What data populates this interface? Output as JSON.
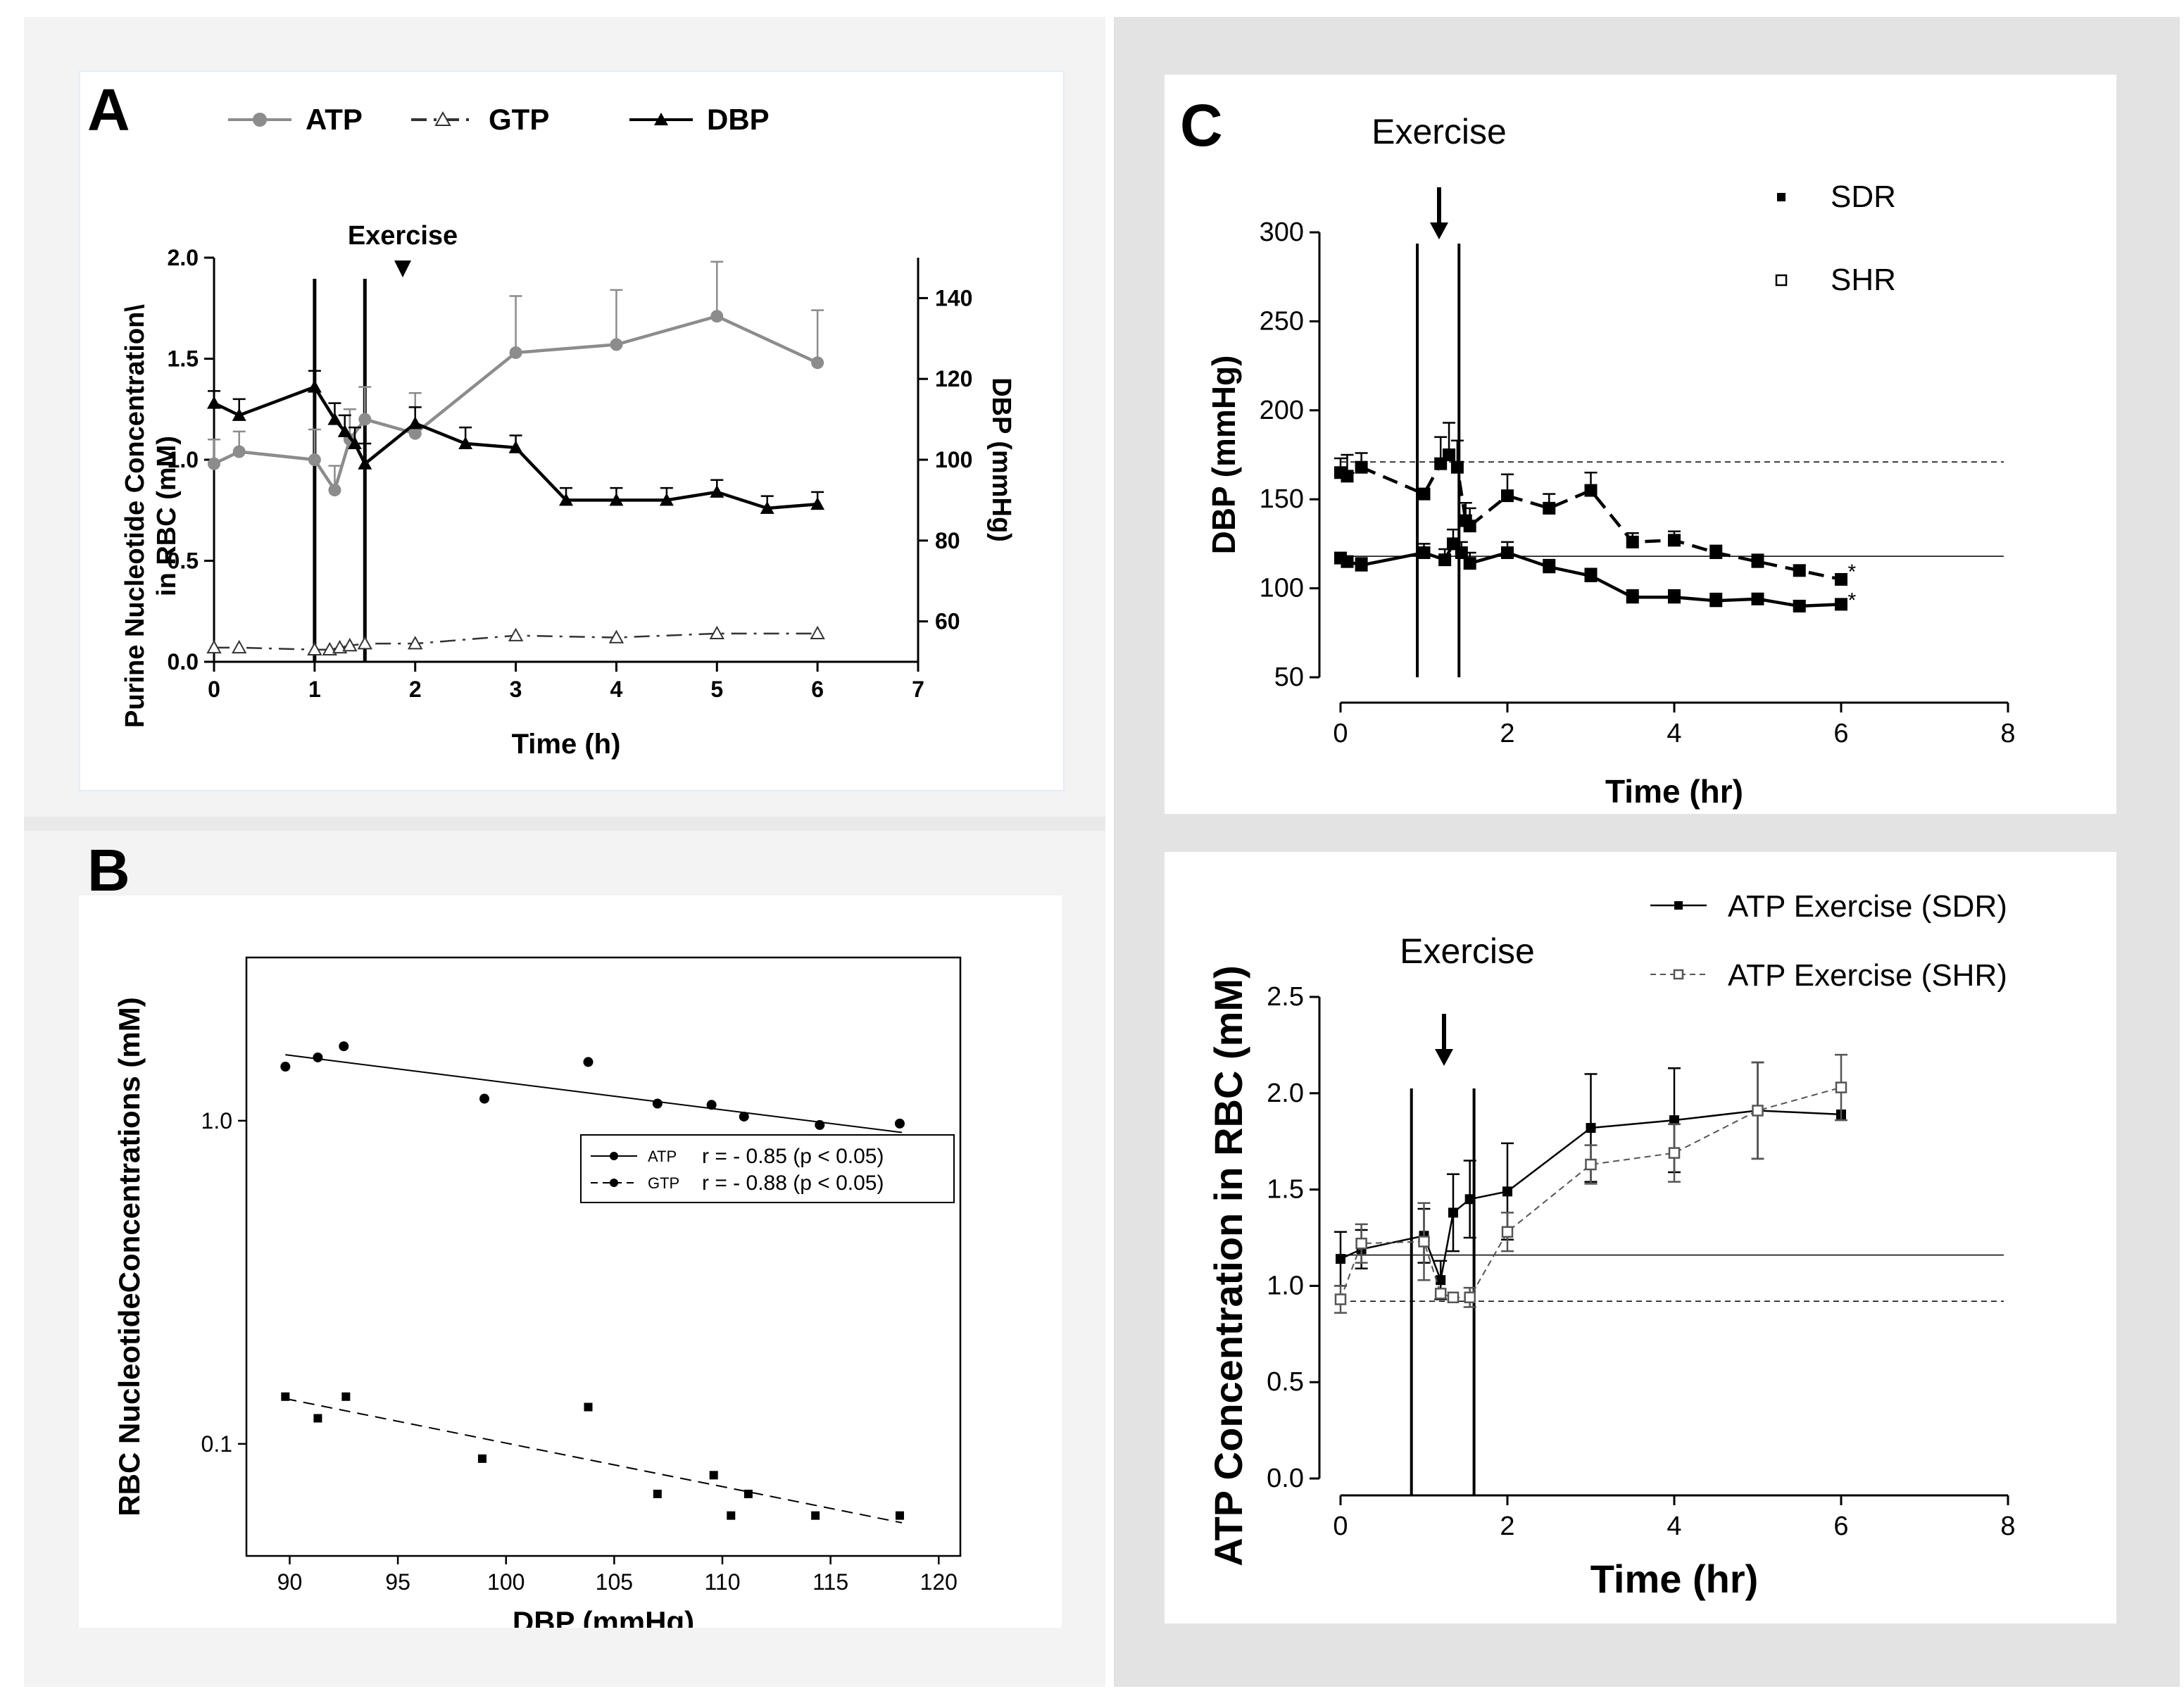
{
  "panels": {
    "A": {
      "label": "A",
      "legend": [
        "ATP",
        "GTP",
        "DBP"
      ],
      "annotation": "Exercise",
      "chart_data": {
        "type": "line",
        "xlabel": "Time (h)",
        "ylabel_line1": "Purine Nucleotide Concentration\\",
        "ylabel_line2": "in RBC (mM)",
        "y2label": "DBP (mmHg)",
        "xlim": [
          0,
          7
        ],
        "ylim": [
          0,
          2.0
        ],
        "y2lim": [
          50,
          150
        ],
        "xticks": [
          "0",
          "1",
          "2",
          "3",
          "4",
          "5",
          "6",
          "7"
        ],
        "yticks": [
          "0.0",
          "0.5",
          "1.0",
          "1.5",
          "2.0"
        ],
        "y2ticks": [
          "60",
          "80",
          "100",
          "120",
          "140"
        ],
        "exercise_lines": [
          1.0,
          1.5
        ],
        "series": [
          {
            "name": "ATP",
            "axis": "left",
            "color": "#8c8c8c",
            "style": "solid",
            "marker": "circle",
            "x": [
              0,
              0.25,
              1.0,
              1.2,
              1.35,
              1.5,
              2.0,
              3.0,
              4.0,
              5.0,
              6.0
            ],
            "y": [
              0.98,
              1.04,
              1.0,
              0.85,
              1.1,
              1.2,
              1.13,
              1.53,
              1.57,
              1.71,
              1.48
            ],
            "err": [
              0.12,
              0.1,
              0.15,
              0.12,
              0.15,
              0.16,
              0.2,
              0.28,
              0.27,
              0.27,
              0.26
            ]
          },
          {
            "name": "GTP",
            "axis": "left",
            "color": "#333333",
            "style": "dashdot",
            "marker": "triangle-open",
            "x": [
              0,
              0.25,
              1.0,
              1.15,
              1.25,
              1.35,
              1.5,
              2.0,
              3.0,
              4.0,
              5.0,
              6.0
            ],
            "y": [
              0.07,
              0.07,
              0.06,
              0.06,
              0.07,
              0.08,
              0.09,
              0.09,
              0.13,
              0.12,
              0.14,
              0.14
            ],
            "err": [
              0,
              0,
              0,
              0,
              0,
              0,
              0,
              0,
              0,
              0,
              0,
              0
            ]
          },
          {
            "name": "DBP",
            "axis": "right",
            "color": "#000000",
            "style": "solid",
            "marker": "triangle",
            "x": [
              0,
              0.25,
              1.0,
              1.2,
              1.3,
              1.4,
              1.5,
              2.0,
              2.5,
              3.0,
              3.5,
              4.0,
              4.5,
              5.0,
              5.5,
              6.0
            ],
            "y": [
              114,
              111,
              118,
              110,
              107,
              104,
              99,
              109,
              104,
              103,
              90,
              90,
              90,
              92,
              88,
              89
            ],
            "err": [
              3,
              4,
              4,
              4,
              4,
              4,
              5,
              4,
              4,
              3,
              3,
              3,
              3,
              3,
              3,
              3
            ]
          }
        ]
      }
    },
    "B": {
      "label": "B",
      "legend": [
        {
          "name": "ATP",
          "stat": "r = - 0.85 (p < 0.05)"
        },
        {
          "name": "GTP",
          "stat": "r = - 0.88 (p < 0.05)"
        }
      ],
      "chart_data": {
        "type": "scatter",
        "xlabel": "DBP (mmHg)",
        "ylabel": "RBC NucleotideConcentrations (mM)",
        "xlim": [
          88,
          121
        ],
        "ylim_log": [
          0.045,
          3.2
        ],
        "xticks": [
          "90",
          "95",
          "100",
          "105",
          "110",
          "115",
          "120"
        ],
        "yticks": [
          "0.1",
          "1.0"
        ],
        "series": [
          {
            "name": "ATP",
            "marker": "circle",
            "x": [
              89.8,
              91.3,
              92.5,
              99.0,
              103.8,
              107.0,
              109.5,
              110.3,
              111.0,
              114.5,
              118.2
            ],
            "y": [
              1.47,
              1.57,
              1.7,
              1.17,
              1.52,
              1.13,
              1.12,
              0.85,
              1.03,
              0.97,
              0.98
            ],
            "fit": [
              1.6,
              0.92
            ]
          },
          {
            "name": "GTP",
            "marker": "square",
            "x": [
              89.8,
              91.3,
              92.6,
              98.9,
              103.8,
              107.0,
              109.6,
              110.4,
              111.2,
              114.3,
              118.2
            ],
            "y": [
              0.14,
              0.12,
              0.14,
              0.09,
              0.13,
              0.07,
              0.08,
              0.06,
              0.07,
              0.06,
              0.06
            ],
            "fit": [
              0.138,
              0.057
            ]
          }
        ]
      }
    },
    "C_top": {
      "label": "C",
      "annotation": "Exercise",
      "legend": [
        "SDR",
        "SHR"
      ],
      "chart_data": {
        "type": "line",
        "xlabel": "Time (hr)",
        "ylabel": "DBP (mmHg)",
        "xlim": [
          0,
          8
        ],
        "ylim": [
          50,
          300
        ],
        "xticks": [
          "0",
          "2",
          "4",
          "6",
          "8"
        ],
        "yticks": [
          "50",
          "100",
          "150",
          "200",
          "250",
          "300"
        ],
        "exercise_lines": [
          0.92,
          1.42
        ],
        "ref_lines": [
          {
            "y": 118,
            "style": "solid"
          },
          {
            "y": 171,
            "style": "dashed"
          }
        ],
        "series": [
          {
            "name": "SDR",
            "marker": "square",
            "style": "solid",
            "x": [
              0,
              0.08,
              0.25,
              1.0,
              1.25,
              1.35,
              1.45,
              1.55,
              2.0,
              2.5,
              3.0,
              3.5,
              4.0,
              4.5,
              5.0,
              5.5,
              6.0
            ],
            "y": [
              117,
              115,
              113,
              120,
              116,
              125,
              120,
              114,
              120,
              112,
              107,
              95,
              95,
              93,
              94,
              90,
              91
            ],
            "err": [
              3,
              3,
              4,
              5,
              6,
              8,
              6,
              6,
              6,
              4,
              4,
              4,
              4,
              4,
              3,
              3,
              3
            ]
          },
          {
            "name": "SHR",
            "marker": "square",
            "style": "dashed",
            "x": [
              0,
              0.08,
              0.25,
              1.0,
              1.2,
              1.3,
              1.4,
              1.5,
              1.55,
              2.0,
              2.5,
              3.0,
              3.5,
              4.0,
              4.5,
              5.0,
              5.5,
              6.0
            ],
            "y": [
              165,
              163,
              168,
              153,
              170,
              175,
              168,
              138,
              135,
              152,
              145,
              155,
              126,
              127,
              120,
              115,
              110,
              105
            ],
            "err": [
              8,
              12,
              8,
              0,
              15,
              18,
              15,
              10,
              10,
              12,
              8,
              10,
              5,
              5,
              4,
              4,
              3,
              3
            ]
          }
        ],
        "asterisks": [
          "*",
          "*"
        ]
      }
    },
    "C_bottom": {
      "annotation": "Exercise",
      "legend": [
        "ATP Exercise (SDR)",
        "ATP Exercise (SHR)"
      ],
      "chart_data": {
        "type": "line",
        "xlabel": "Time (hr)",
        "ylabel": "ATP Concentration in RBC (mM)",
        "xlim": [
          0,
          8
        ],
        "ylim": [
          0,
          2.5
        ],
        "xticks": [
          "0",
          "2",
          "4",
          "6",
          "8"
        ],
        "yticks": [
          "0.0",
          "0.5",
          "1.0",
          "1.5",
          "2.0",
          "2.5"
        ],
        "exercise_lines": [
          0.85,
          1.6
        ],
        "ref_lines": [
          {
            "y": 1.16,
            "style": "solid"
          },
          {
            "y": 0.92,
            "style": "dashed"
          }
        ],
        "series": [
          {
            "name": "ATP Exercise (SDR)",
            "marker": "square",
            "style": "solid",
            "x": [
              0,
              0.25,
              1.0,
              1.2,
              1.35,
              1.55,
              2.0,
              3.0,
              4.0,
              5.0,
              6.0
            ],
            "y": [
              1.14,
              1.19,
              1.26,
              1.03,
              1.38,
              1.45,
              1.49,
              1.82,
              1.86,
              1.91,
              1.89
            ],
            "err": [
              0.14,
              0.1,
              0.14,
              0.1,
              0.2,
              0.2,
              0.25,
              0.28,
              0.27,
              0.25,
              0.0
            ]
          },
          {
            "name": "ATP Exercise (SHR)",
            "marker": "square-open",
            "style": "dashed",
            "x": [
              0,
              0.25,
              1.0,
              1.2,
              1.35,
              1.55,
              2.0,
              3.0,
              4.0,
              5.0,
              6.0
            ],
            "y": [
              0.93,
              1.22,
              1.23,
              0.96,
              0.94,
              0.94,
              1.28,
              1.63,
              1.69,
              1.91,
              2.03
            ],
            "err": [
              0.07,
              0.1,
              0.2,
              0.0,
              0.0,
              0.05,
              0.1,
              0.1,
              0.15,
              0.25,
              0.17
            ]
          }
        ]
      }
    }
  }
}
